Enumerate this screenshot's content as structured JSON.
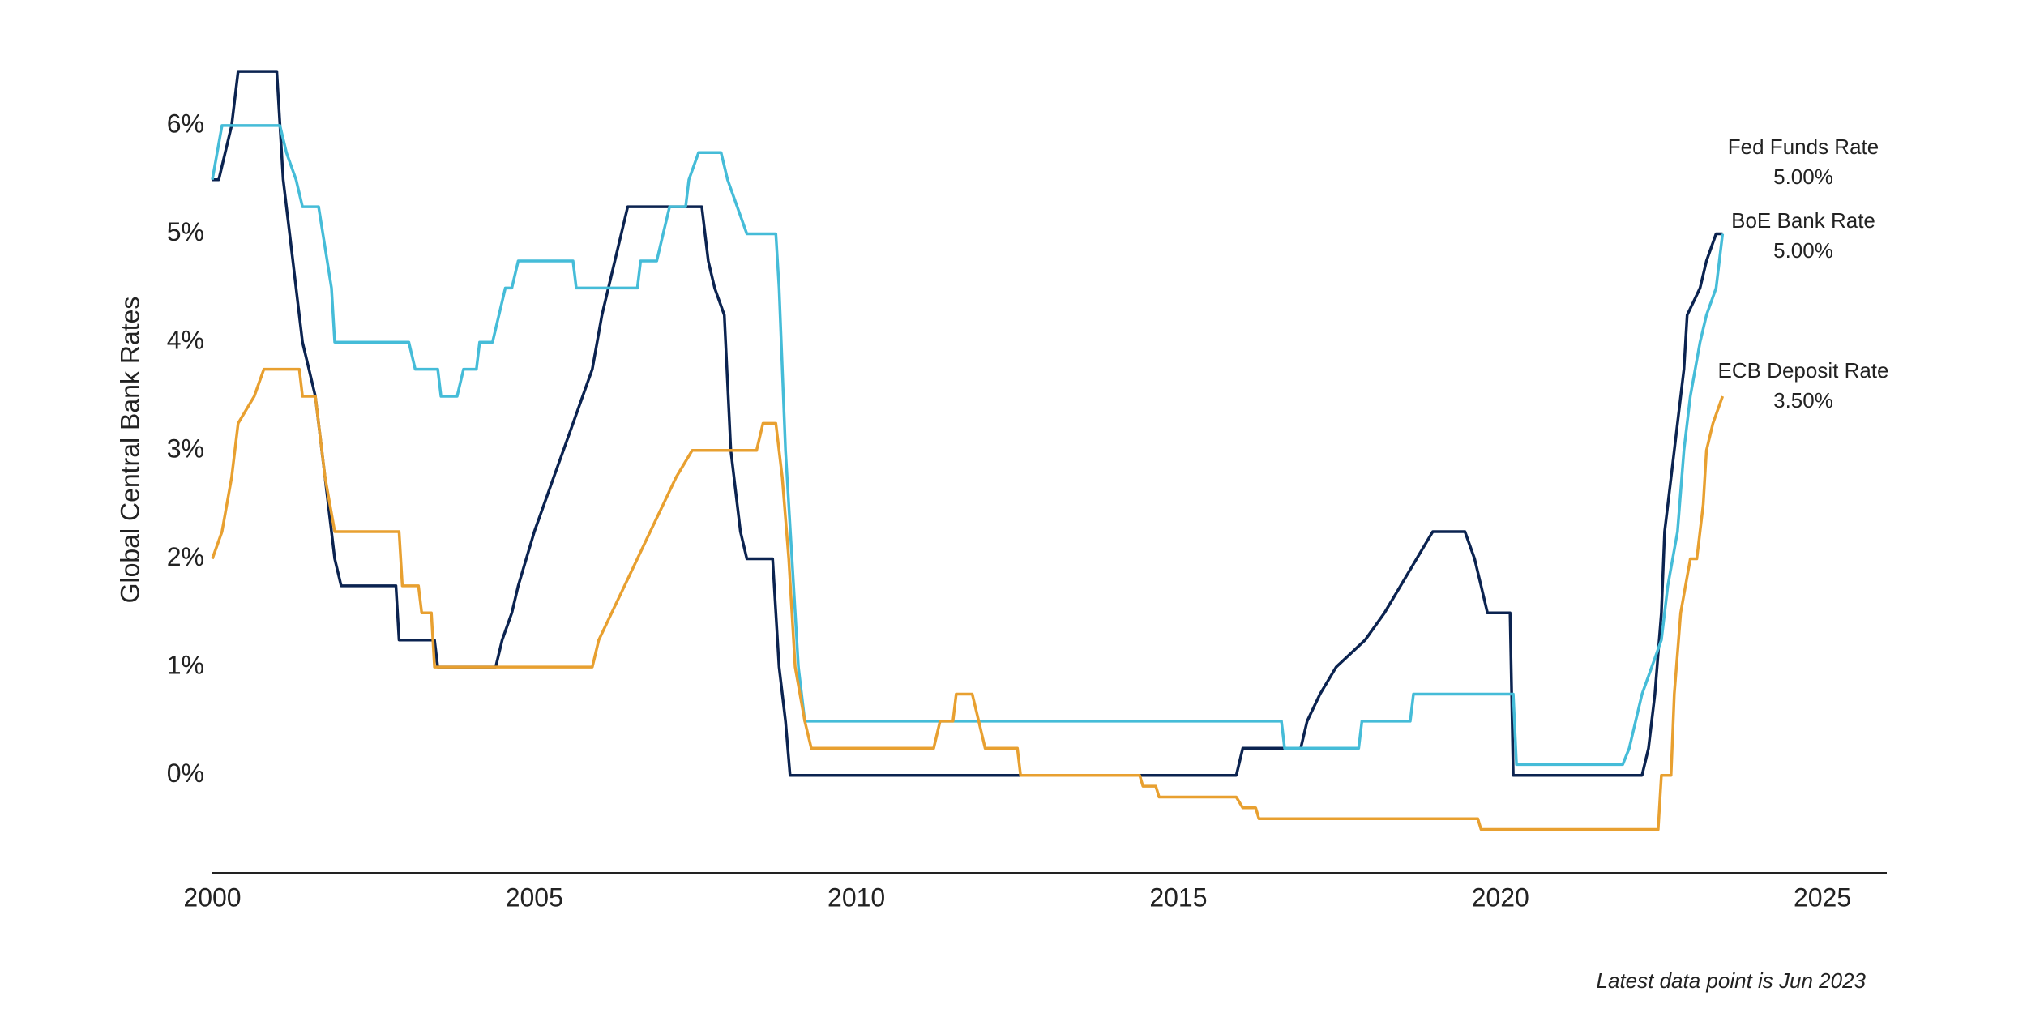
{
  "chart_data": {
    "type": "line",
    "y_label": "Global Central Bank Rates",
    "note": "Latest data point is Jun 2023",
    "xlim": [
      2000,
      2026
    ],
    "xticks": [
      2000,
      2005,
      2010,
      2015,
      2020,
      2025
    ],
    "ylim": [
      -0.9,
      6.8
    ],
    "yticks": [
      {
        "value": 0,
        "label": "0%"
      },
      {
        "value": 1,
        "label": "1%"
      },
      {
        "value": 2,
        "label": "2%"
      },
      {
        "value": 3,
        "label": "3%"
      },
      {
        "value": 4,
        "label": "4%"
      },
      {
        "value": 5,
        "label": "5%"
      },
      {
        "value": 6,
        "label": "6%"
      }
    ],
    "grid": false,
    "series": [
      {
        "name": "Fed Funds Rate",
        "color": "#0b2350",
        "x": [
          2000.0,
          2000.1,
          2000.3,
          2000.4,
          2001.0,
          2001.1,
          2001.2,
          2001.4,
          2001.5,
          2001.6,
          2001.8,
          2001.9,
          2002.0,
          2002.85,
          2002.9,
          2003.45,
          2003.5,
          2004.4,
          2004.5,
          2004.65,
          2004.75,
          2005.0,
          2005.15,
          2005.3,
          2005.45,
          2005.6,
          2005.75,
          2005.9,
          2006.05,
          2006.25,
          2006.45,
          2007.6,
          2007.7,
          2007.8,
          2007.95,
          2008.05,
          2008.2,
          2008.3,
          2008.7,
          2008.8,
          2008.9,
          2008.97,
          2015.9,
          2016.0,
          2016.9,
          2017.0,
          2017.2,
          2017.45,
          2017.9,
          2018.2,
          2018.45,
          2018.7,
          2018.95,
          2019.45,
          2019.6,
          2019.7,
          2019.8,
          2020.15,
          2020.2,
          2022.2,
          2022.3,
          2022.4,
          2022.5,
          2022.55,
          2022.7,
          2022.85,
          2022.9,
          2023.1,
          2023.2,
          2023.35,
          2023.45
        ],
        "values": [
          5.5,
          5.5,
          6.0,
          6.5,
          6.5,
          5.5,
          5.0,
          4.0,
          3.75,
          3.5,
          2.5,
          2.0,
          1.75,
          1.75,
          1.25,
          1.25,
          1.0,
          1.0,
          1.25,
          1.5,
          1.75,
          2.25,
          2.5,
          2.75,
          3.0,
          3.25,
          3.5,
          3.75,
          4.25,
          4.75,
          5.25,
          5.25,
          4.75,
          4.5,
          4.25,
          3.0,
          2.25,
          2.0,
          2.0,
          1.0,
          0.5,
          0.0,
          0.0,
          0.25,
          0.25,
          0.5,
          0.75,
          1.0,
          1.25,
          1.5,
          1.75,
          2.0,
          2.25,
          2.25,
          2.0,
          1.75,
          1.5,
          1.5,
          0.0,
          0.0,
          0.25,
          0.75,
          1.5,
          2.25,
          3.0,
          3.75,
          4.25,
          4.5,
          4.75,
          5.0,
          5.0
        ],
        "value_labels": [
          null,
          null,
          null,
          null,
          null,
          null,
          null,
          null,
          null,
          null,
          null,
          null,
          null,
          null,
          null,
          null,
          null,
          null,
          null,
          null,
          null,
          null,
          null,
          null,
          null,
          null,
          null,
          null,
          null,
          null,
          null,
          null,
          null,
          null,
          null,
          null,
          null,
          null,
          null,
          null,
          null,
          null,
          null,
          null,
          null,
          null,
          null,
          null,
          null,
          null,
          null,
          null,
          null,
          null,
          null,
          null,
          null,
          null,
          null,
          null,
          null,
          null,
          null,
          null,
          null,
          null,
          null,
          null,
          null,
          null,
          "5.00%"
        ]
      },
      {
        "name": "BoE Bank Rate",
        "color": "#45bcd8",
        "x": [
          2000.0,
          2000.15,
          2001.05,
          2001.15,
          2001.3,
          2001.4,
          2001.65,
          2001.85,
          2001.9,
          2003.05,
          2003.15,
          2003.5,
          2003.55,
          2003.8,
          2003.9,
          2004.1,
          2004.15,
          2004.35,
          2004.55,
          2004.65,
          2004.75,
          2005.6,
          2005.65,
          2006.6,
          2006.65,
          2006.9,
          2007.0,
          2007.1,
          2007.35,
          2007.4,
          2007.55,
          2007.9,
          2008.0,
          2008.15,
          2008.3,
          2008.75,
          2008.8,
          2008.9,
          2009.0,
          2009.1,
          2009.2,
          2016.6,
          2016.65,
          2017.8,
          2017.85,
          2018.6,
          2018.65,
          2020.2,
          2020.25,
          2021.9,
          2022.0,
          2022.1,
          2022.2,
          2022.35,
          2022.5,
          2022.6,
          2022.75,
          2022.85,
          2022.95,
          2023.1,
          2023.2,
          2023.35,
          2023.45
        ],
        "values": [
          5.5,
          6.0,
          6.0,
          5.75,
          5.5,
          5.25,
          5.25,
          4.5,
          4.0,
          4.0,
          3.75,
          3.75,
          3.5,
          3.5,
          3.75,
          3.75,
          4.0,
          4.0,
          4.5,
          4.5,
          4.75,
          4.75,
          4.5,
          4.5,
          4.75,
          4.75,
          5.0,
          5.25,
          5.25,
          5.5,
          5.75,
          5.75,
          5.5,
          5.25,
          5.0,
          5.0,
          4.5,
          3.0,
          2.0,
          1.0,
          0.5,
          0.5,
          0.25,
          0.25,
          0.5,
          0.5,
          0.75,
          0.75,
          0.1,
          0.1,
          0.25,
          0.5,
          0.75,
          1.0,
          1.25,
          1.75,
          2.25,
          3.0,
          3.5,
          4.0,
          4.25,
          4.5,
          5.0
        ],
        "value_labels": [
          null,
          null,
          null,
          null,
          null,
          null,
          null,
          null,
          null,
          null,
          null,
          null,
          null,
          null,
          null,
          null,
          null,
          null,
          null,
          null,
          null,
          null,
          null,
          null,
          null,
          null,
          null,
          null,
          null,
          null,
          null,
          null,
          null,
          null,
          null,
          null,
          null,
          null,
          null,
          null,
          null,
          null,
          null,
          null,
          null,
          null,
          null,
          null,
          null,
          null,
          null,
          null,
          null,
          null,
          null,
          null,
          null,
          null,
          null,
          null,
          null,
          null,
          "5.00%"
        ]
      },
      {
        "name": "ECB Deposit Rate",
        "color": "#e8a030",
        "x": [
          2000.0,
          2000.15,
          2000.3,
          2000.4,
          2000.65,
          2000.8,
          2001.35,
          2001.4,
          2001.6,
          2001.65,
          2001.75,
          2001.9,
          2002.9,
          2002.95,
          2003.2,
          2003.25,
          2003.4,
          2003.45,
          2005.9,
          2006.0,
          2006.2,
          2006.4,
          2006.6,
          2006.8,
          2007.0,
          2007.2,
          2007.45,
          2008.45,
          2008.55,
          2008.75,
          2008.85,
          2008.95,
          2009.05,
          2009.2,
          2009.3,
          2011.2,
          2011.3,
          2011.5,
          2011.55,
          2011.8,
          2011.9,
          2012.0,
          2012.5,
          2012.55,
          2014.4,
          2014.45,
          2014.65,
          2014.7,
          2015.9,
          2016.0,
          2016.2,
          2016.25,
          2019.65,
          2019.7,
          2022.45,
          2022.5,
          2022.65,
          2022.7,
          2022.8,
          2022.95,
          2023.05,
          2023.15,
          2023.2,
          2023.3,
          2023.45
        ],
        "values": [
          2.0,
          2.25,
          2.75,
          3.25,
          3.5,
          3.75,
          3.75,
          3.5,
          3.5,
          3.25,
          2.75,
          2.25,
          2.25,
          1.75,
          1.75,
          1.5,
          1.5,
          1.0,
          1.0,
          1.25,
          1.5,
          1.75,
          2.0,
          2.25,
          2.5,
          2.75,
          3.0,
          3.0,
          3.25,
          3.25,
          2.75,
          2.0,
          1.0,
          0.5,
          0.25,
          0.25,
          0.5,
          0.5,
          0.75,
          0.75,
          0.5,
          0.25,
          0.25,
          0.0,
          0.0,
          -0.1,
          -0.1,
          -0.2,
          -0.2,
          -0.3,
          -0.3,
          -0.4,
          -0.4,
          -0.5,
          -0.5,
          0.0,
          0.0,
          0.75,
          1.5,
          2.0,
          2.0,
          2.5,
          3.0,
          3.25,
          3.5
        ],
        "value_labels": [
          null,
          null,
          null,
          null,
          null,
          null,
          null,
          null,
          null,
          null,
          null,
          null,
          null,
          null,
          null,
          null,
          null,
          null,
          null,
          null,
          null,
          null,
          null,
          null,
          null,
          null,
          null,
          null,
          null,
          null,
          null,
          null,
          null,
          null,
          null,
          null,
          null,
          null,
          null,
          null,
          null,
          null,
          null,
          null,
          null,
          null,
          null,
          null,
          null,
          null,
          null,
          null,
          null,
          null,
          null,
          null,
          null,
          null,
          null,
          null,
          null,
          null,
          null,
          null,
          "3.50%"
        ]
      }
    ]
  }
}
